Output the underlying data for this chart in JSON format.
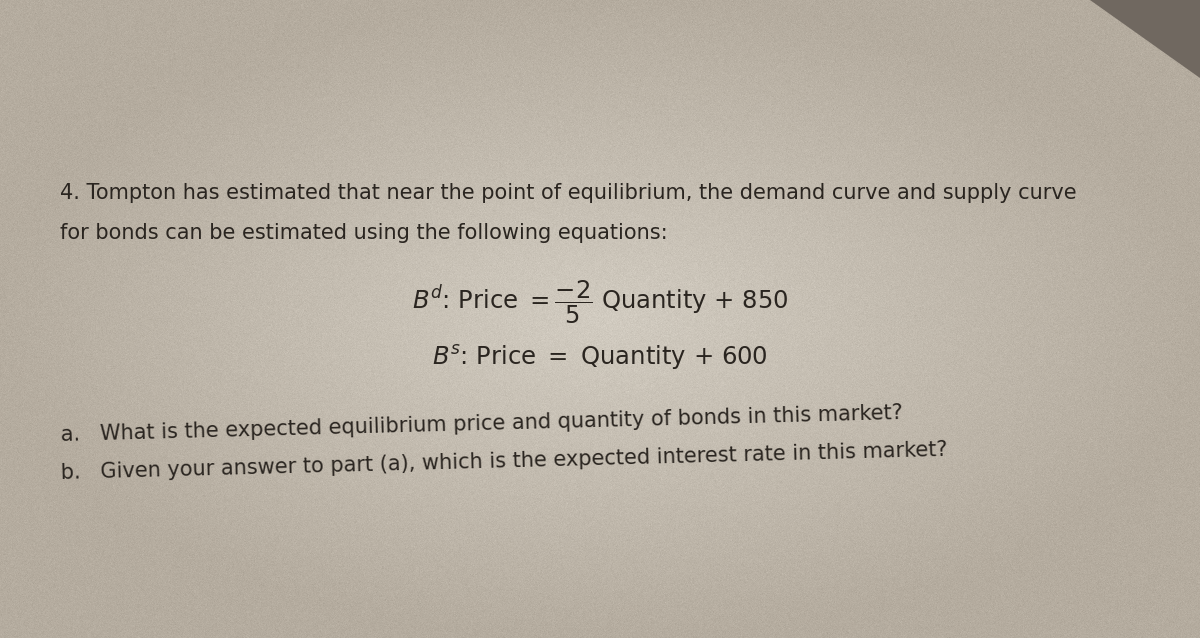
{
  "bg_color_center": "#cfc5b8",
  "bg_color_edge": "#9e9080",
  "text_color": "#2a2520",
  "line1": "4. Tompton has estimated that near the point of equilibrium, the demand curve and supply curve",
  "line2": "for bonds can be estimated using the following equations:",
  "eq1_text": "$B^d$: Price $=\\dfrac{-2}{5}$ Quantity $+$ 850",
  "eq2_text": "$B^s$: Price $=$ Quantity $+$ 600",
  "qa": "a.   What is the expected equilibrium price and quantity of bonds in this market?",
  "qb": "b.   Given your answer to part (a), which is the expected interest rate in this market?",
  "corner_color": "#8a7f74",
  "figsize": [
    12.0,
    6.38
  ],
  "dpi": 100
}
